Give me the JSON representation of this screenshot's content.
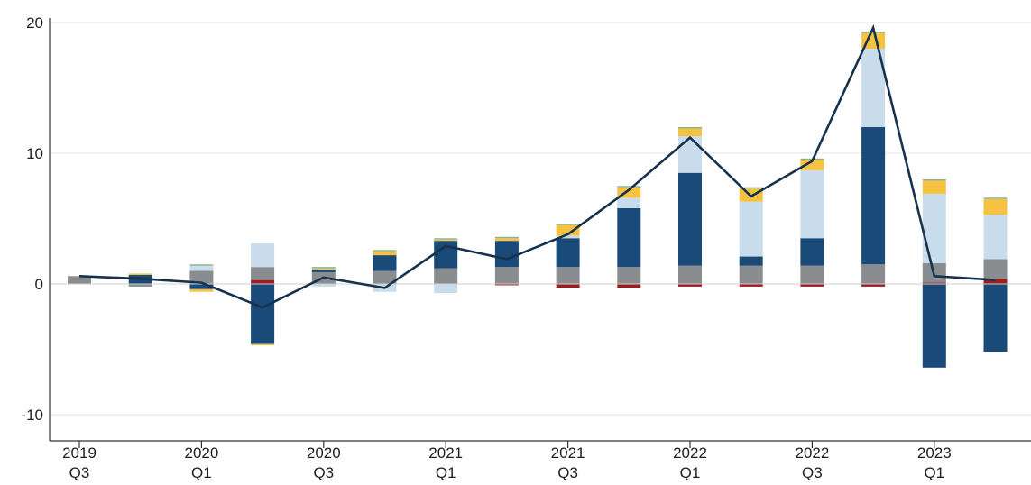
{
  "chart_data": {
    "type": "bar",
    "subtype": "stacked-bar-with-line",
    "title": "",
    "xlabel": "",
    "ylabel": "",
    "ylim": [
      -12,
      20
    ],
    "yticks": [
      20,
      10,
      0,
      -10
    ],
    "grid": "horizontal",
    "legend": "none",
    "categories": [
      "2019 Q3",
      "2019 Q4",
      "2020 Q1",
      "2020 Q2",
      "2020 Q3",
      "2020 Q4",
      "2021 Q1",
      "2021 Q2",
      "2021 Q3",
      "2021 Q4",
      "2022 Q1",
      "2022 Q2",
      "2022 Q3",
      "2022 Q4",
      "2023 Q1",
      "2023 Q2"
    ],
    "x_tick_labels": [
      {
        "index": 0,
        "line1": "2019",
        "line2": "Q3"
      },
      {
        "index": 2,
        "line1": "2020",
        "line2": "Q1"
      },
      {
        "index": 4,
        "line1": "2020",
        "line2": "Q3"
      },
      {
        "index": 6,
        "line1": "2021",
        "line2": "Q1"
      },
      {
        "index": 8,
        "line1": "2021",
        "line2": "Q3"
      },
      {
        "index": 10,
        "line1": "2022",
        "line2": "Q1"
      },
      {
        "index": 12,
        "line1": "2022",
        "line2": "Q3"
      },
      {
        "index": 14,
        "line1": "2023",
        "line2": "Q1"
      }
    ],
    "series": [
      {
        "color": "#9e1b1e",
        "values": [
          0,
          0,
          0,
          0.3,
          0,
          0,
          0,
          -0.1,
          -0.3,
          -0.3,
          -0.2,
          -0.2,
          -0.2,
          -0.2,
          0.1,
          0.4
        ]
      },
      {
        "color": "#8a8d8f",
        "values": [
          0.6,
          -0.2,
          1.0,
          1.0,
          0.9,
          1.0,
          1.2,
          1.3,
          1.3,
          1.3,
          1.4,
          1.4,
          1.4,
          1.5,
          1.5,
          1.5
        ]
      },
      {
        "color": "#1a4a78",
        "values": [
          0,
          0.7,
          -0.4,
          -4.6,
          0.2,
          1.2,
          2.1,
          2.0,
          2.2,
          4.5,
          7.1,
          0.7,
          2.1,
          10.5,
          -6.4,
          -5.2
        ]
      },
      {
        "color": "#c9dcec",
        "values": [
          0,
          0,
          0.4,
          1.8,
          -0.2,
          -0.6,
          -0.7,
          0,
          0.2,
          0.8,
          2.8,
          4.2,
          5.2,
          6.0,
          5.3,
          3.4
        ]
      },
      {
        "color": "#f5c242",
        "values": [
          0,
          0.1,
          -0.2,
          -0.1,
          0.1,
          0.3,
          0.1,
          0.2,
          0.8,
          0.8,
          0.6,
          1.0,
          0.8,
          1.2,
          1.0,
          1.2
        ]
      },
      {
        "color": "#8db28f",
        "values": [
          0,
          0,
          0.1,
          0,
          0.1,
          0.1,
          0.1,
          0.1,
          0.1,
          0.1,
          0.1,
          0.1,
          0.1,
          0.1,
          0.1,
          0.1
        ]
      }
    ],
    "line": {
      "color": "#17324d",
      "values": [
        0.6,
        0.4,
        0.1,
        -1.8,
        0.5,
        -0.3,
        2.9,
        1.9,
        3.8,
        7.2,
        11.2,
        6.7,
        9.4,
        19.6,
        0.6,
        0.3
      ]
    }
  }
}
